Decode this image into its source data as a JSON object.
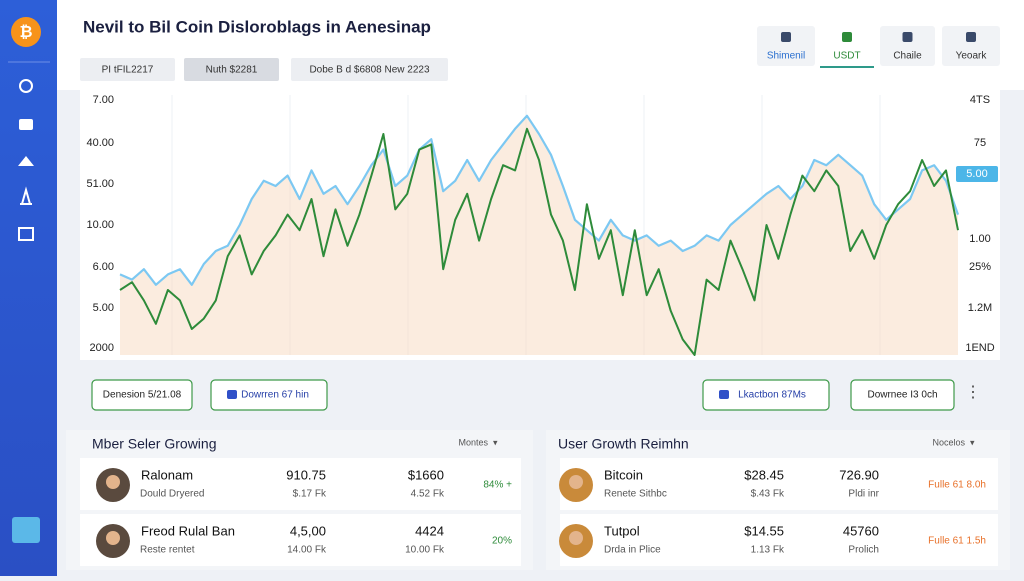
{
  "header": {
    "title": "Nevil to Bil Coin Disloroblags in Aenesinap"
  },
  "tabs": [
    "Shimenil",
    "USDT",
    "Chaile",
    "Yeoark"
  ],
  "filters": [
    "PI tFIL2217",
    "Nuth $2281",
    "Dobe B d $6808 New 2223"
  ],
  "chart": {
    "type": "line",
    "axis_left": [
      "7.00",
      "40.00",
      "51.00",
      "10.00",
      "6.00",
      "5.00",
      "2000"
    ],
    "axis_right": [
      "4TS",
      "75",
      "5.00",
      "1.00",
      "25%",
      "1.2M",
      "1END"
    ],
    "ylim": [
      0,
      100
    ],
    "series": [
      {
        "color": "#2e8b3a",
        "values": [
          25,
          28,
          21,
          12,
          25,
          21,
          10,
          14,
          21,
          38,
          46,
          31,
          40,
          46,
          54,
          48,
          60,
          38,
          56,
          42,
          54,
          69,
          85,
          56,
          62,
          79,
          81,
          33,
          52,
          62,
          44,
          60,
          73,
          71,
          87,
          75,
          54,
          44,
          25,
          58,
          37,
          48,
          23,
          48,
          23,
          33,
          17,
          6,
          0,
          29,
          25,
          44,
          33,
          21,
          50,
          37,
          54,
          69,
          63,
          71,
          65,
          40,
          48,
          37,
          50,
          58,
          63,
          75,
          65,
          71,
          48
        ]
      },
      {
        "color": "#7cc8f2",
        "values": [
          31,
          29,
          33,
          27,
          31,
          33,
          27,
          35,
          40,
          42,
          50,
          60,
          67,
          65,
          69,
          60,
          71,
          62,
          65,
          58,
          65,
          73,
          79,
          65,
          69,
          79,
          83,
          63,
          67,
          75,
          67,
          75,
          81,
          87,
          92,
          85,
          77,
          65,
          52,
          48,
          44,
          52,
          46,
          44,
          46,
          42,
          44,
          40,
          42,
          46,
          44,
          50,
          54,
          58,
          62,
          65,
          60,
          65,
          75,
          73,
          77,
          73,
          69,
          58,
          52,
          56,
          60,
          71,
          73,
          67,
          54
        ]
      }
    ]
  },
  "actions": [
    "Denesion 5/21.08",
    "Dowrren 67 hin",
    "Lkactbon 87Ms",
    "Dowrnee I3 0ch"
  ],
  "panels": [
    {
      "title": "Mber Seler Growing",
      "menu": "Montes",
      "rows": [
        [
          "Ralonam",
          "Dould Dryered",
          "910.75",
          "$.17 Fk",
          "$1660",
          "4.52 Fk",
          "84% +"
        ],
        [
          "Freod Rulal Ban",
          "Reste rentet",
          "4,5,00",
          "14.00 Fk",
          "4424",
          "10.00 Fk",
          "20%"
        ]
      ]
    },
    {
      "title": "User Growth Reimhn",
      "menu": "Nocelos",
      "rows": [
        [
          "Bitcoin",
          "Renete Sithbc",
          "$28.45",
          "$.43 Fk",
          "726.90",
          "Pldi inr",
          "Fulle 61 8.0h"
        ],
        [
          "Tutpol",
          "Drda in Plice",
          "$14.55",
          "1.13 Fk",
          "45760",
          "Prolich",
          "Fulle 61 1.5h"
        ]
      ]
    }
  ]
}
